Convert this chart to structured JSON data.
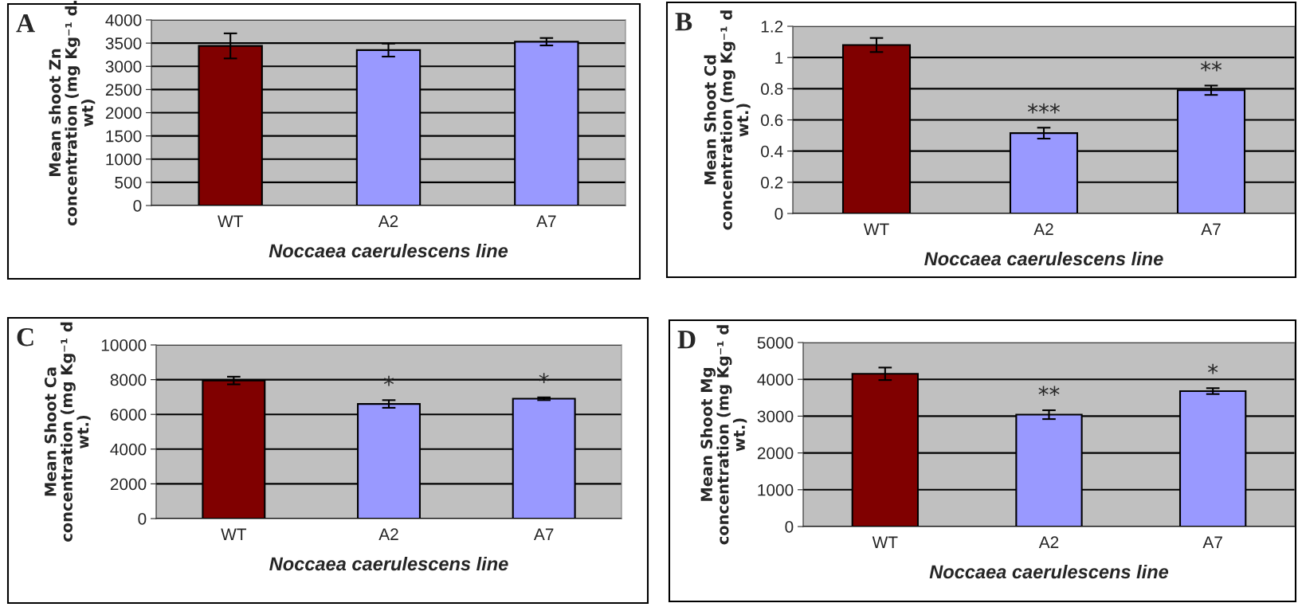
{
  "chart_data": [
    {
      "type": "bar",
      "categories": [
        "WT",
        "A2",
        "A7"
      ],
      "values": [
        3440,
        3350,
        3530
      ],
      "errors": [
        270,
        140,
        80
      ],
      "colors": [
        "#800000",
        "#9999ff",
        "#9999ff"
      ],
      "ylabel": "Mean shoot Zn\nconcentration (mg Kg⁻¹ d.\nwt)",
      "xlabel": "Noccaea caerulescens line",
      "ylim": [
        0,
        4000
      ],
      "yticks": [
        0,
        500,
        1000,
        1500,
        2000,
        2500,
        3000,
        3500,
        4000
      ],
      "grid": "y",
      "annotations": [
        "A"
      ]
    },
    {
      "type": "bar",
      "categories": [
        "WT",
        "A2",
        "A7"
      ],
      "values": [
        1.08,
        0.515,
        0.79
      ],
      "errors": [
        0.045,
        0.035,
        0.03
      ],
      "colors": [
        "#800000",
        "#9999ff",
        "#9999ff"
      ],
      "ylabel": "Mean Shoot Cd\nconcentration (mg Kg⁻¹ d\nwt.)",
      "xlabel": "Noccaea caerulescens line",
      "ylim": [
        0,
        1.2
      ],
      "yticks": [
        0,
        {
          "value": 0.2,
          "label": "0.2"
        },
        {
          "value": 0.4,
          "label": "0.4"
        },
        {
          "value": 0.6,
          "label": "0.6"
        },
        {
          "value": 0.8,
          "label": "0.8"
        },
        1,
        {
          "value": 1.2,
          "label": "1.2"
        }
      ],
      "grid": "y",
      "annotations": [
        "B",
        "***",
        "**"
      ]
    },
    {
      "type": "bar",
      "categories": [
        "WT",
        "A2",
        "A7"
      ],
      "values": [
        7950,
        6600,
        6900
      ],
      "errors": [
        220,
        220,
        80
      ],
      "colors": [
        "#800000",
        "#9999ff",
        "#9999ff"
      ],
      "ylabel": "Mean Shoot Ca\nconcentration (mg Kg⁻¹ d\nwt.)",
      "xlabel": "Noccaea caerulescens line",
      "ylim": [
        0,
        10000
      ],
      "yticks": [
        0,
        2000,
        4000,
        6000,
        8000,
        10000
      ],
      "grid": "y",
      "annotations": [
        "C",
        "*",
        "*"
      ]
    },
    {
      "type": "bar",
      "categories": [
        "WT",
        "A2",
        "A7"
      ],
      "values": [
        4150,
        3040,
        3680
      ],
      "errors": [
        170,
        120,
        80
      ],
      "colors": [
        "#800000",
        "#9999ff",
        "#9999ff"
      ],
      "ylabel": "Mean Shoot Mg\nconcentration (mg Kg⁻¹ d\nwt.)",
      "xlabel": "Noccaea caerulescens line",
      "ylim": [
        0,
        5000
      ],
      "yticks": [
        0,
        1000,
        2000,
        3000,
        4000,
        5000
      ],
      "grid": "y",
      "annotations": [
        "D",
        "**",
        "*"
      ]
    }
  ]
}
